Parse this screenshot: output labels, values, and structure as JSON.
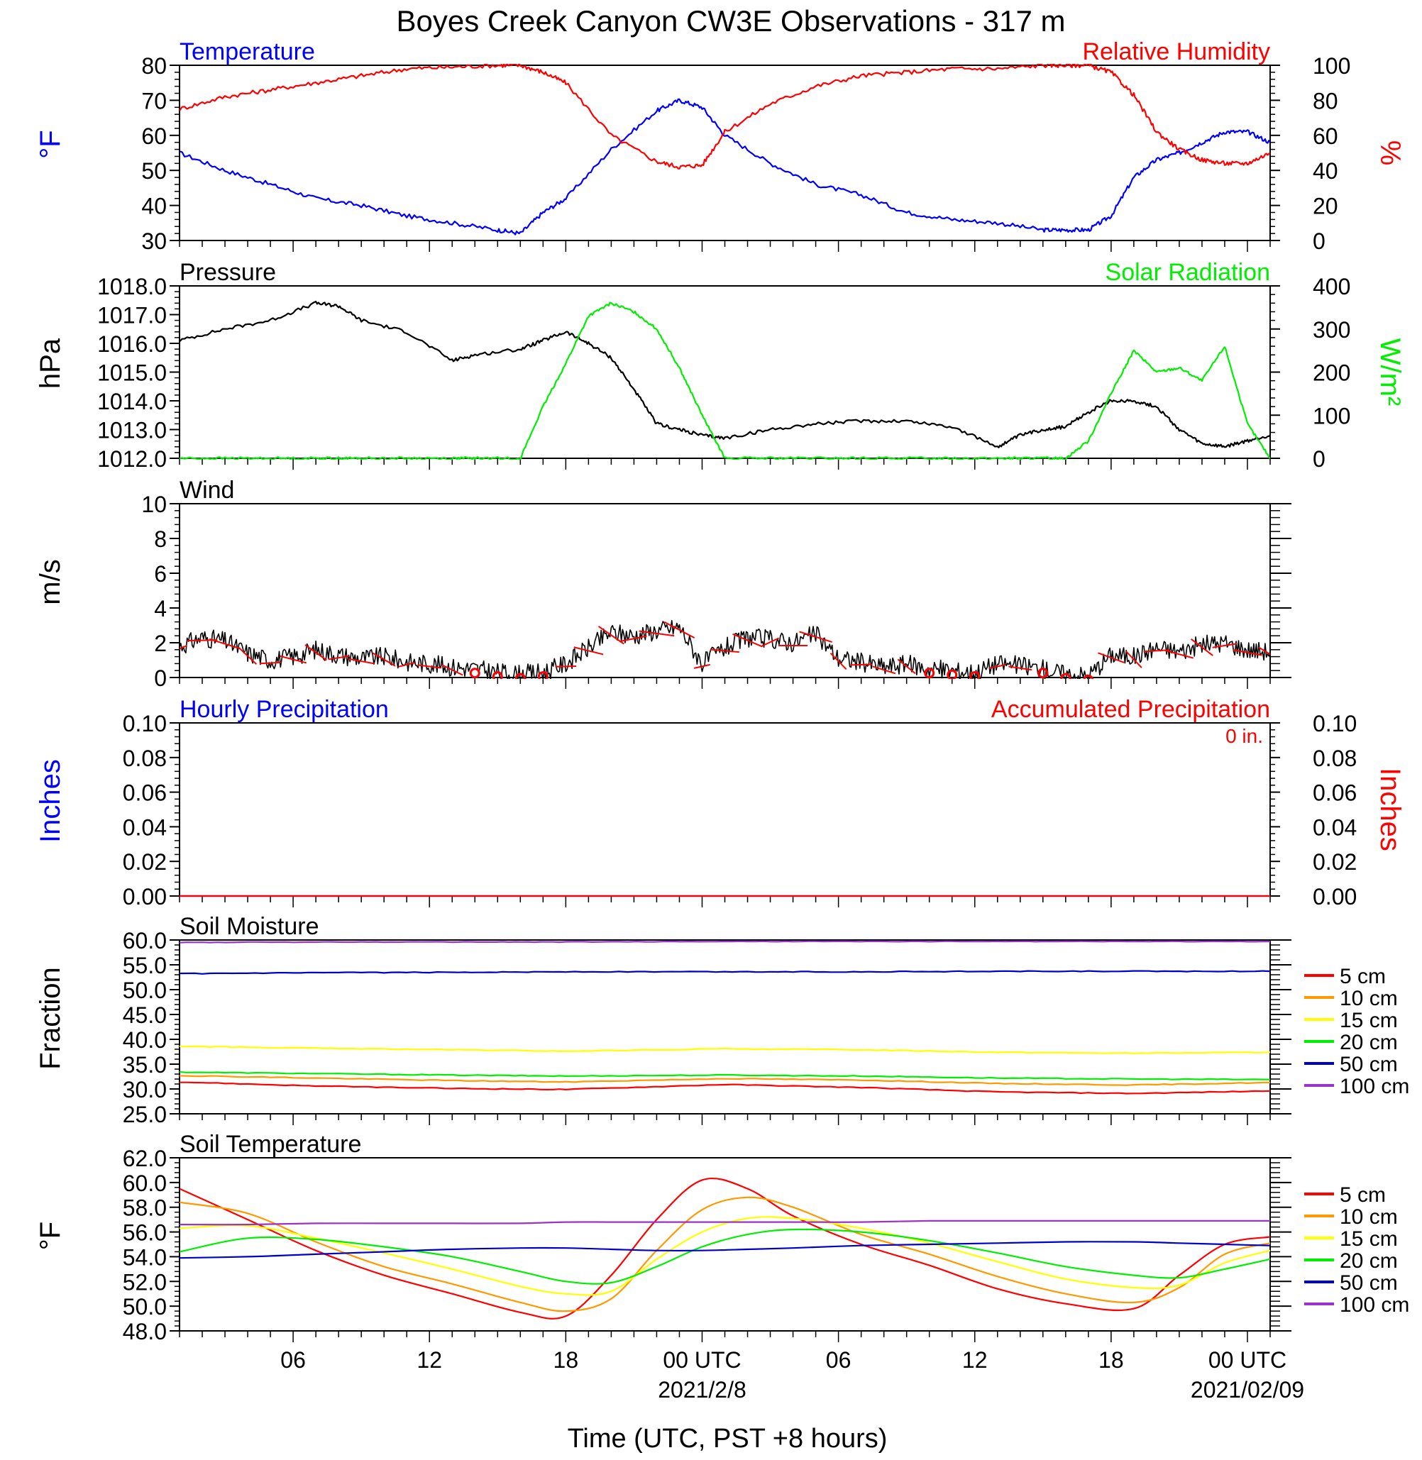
{
  "title": "Boyes Creek Canyon CW3E Observations - 317 m",
  "xaxis": {
    "label": "Time (UTC, PST +8 hours)",
    "ticks": [
      "06",
      "12",
      "18",
      "00 UTC",
      "06",
      "12",
      "18",
      "00 UTC"
    ],
    "tick_hours": [
      6,
      12,
      18,
      24,
      30,
      36,
      42,
      48
    ],
    "dates": [
      "2021/2/8",
      "2021/02/09"
    ],
    "date_hours": [
      24,
      48
    ],
    "range_hours": [
      1,
      49
    ]
  },
  "colors": {
    "temperature": "#0000ff",
    "rh": "#ff0000",
    "pressure": "#000000",
    "solar": "#00ee00",
    "wind": "#000000",
    "barb": "#ff0000",
    "soil_5": "#ff0000",
    "soil_10": "#ff9900",
    "soil_15": "#ffff00",
    "soil_20": "#00ee00",
    "soil_50": "#0000cc",
    "soil_100": "#9933cc"
  },
  "panels": {
    "temp_rh": {
      "title_left": "Temperature",
      "title_right": "Relative Humidity",
      "ylabel_left": "°F",
      "ylabel_right": "%",
      "left_ticks": [
        "80",
        "70",
        "60",
        "50",
        "40",
        "30"
      ],
      "right_ticks": [
        "100",
        "80",
        "60",
        "40",
        "20",
        "0"
      ]
    },
    "pressure_solar": {
      "title_left": "Pressure",
      "title_right": "Solar Radiation",
      "ylabel_left": "hPa",
      "ylabel_right": "W/m²",
      "left_ticks": [
        "1018.0",
        "1017.0",
        "1016.0",
        "1015.0",
        "1014.0",
        "1013.0",
        "1012.0"
      ],
      "right_ticks": [
        "400",
        "300",
        "200",
        "100",
        "0"
      ]
    },
    "wind": {
      "title_left": "Wind",
      "ylabel_left": "m/s",
      "left_ticks": [
        "10",
        "8",
        "6",
        "4",
        "2",
        "0"
      ]
    },
    "precip": {
      "title_left": "Hourly Precipitation",
      "title_right": "Accumulated Precipitation",
      "accum_label": "0 in.",
      "ylabel_left": "Inches",
      "ylabel_right": "Inches",
      "left_ticks": [
        "0.10",
        "0.08",
        "0.06",
        "0.04",
        "0.02",
        "0.00"
      ],
      "right_ticks": [
        "0.10",
        "0.08",
        "0.06",
        "0.04",
        "0.02",
        "0.00"
      ]
    },
    "soil_moisture": {
      "title_left": "Soil Moisture",
      "ylabel_left": "Fraction",
      "left_ticks": [
        "60.0",
        "55.0",
        "50.0",
        "45.0",
        "40.0",
        "35.0",
        "30.0",
        "25.0"
      ],
      "legend": [
        "5 cm",
        "10 cm",
        "15 cm",
        "20 cm",
        "50 cm",
        "100 cm"
      ]
    },
    "soil_temp": {
      "title_left": "Soil Temperature",
      "ylabel_left": "°F",
      "left_ticks": [
        "62.0",
        "60.0",
        "58.0",
        "56.0",
        "54.0",
        "52.0",
        "50.0",
        "48.0"
      ],
      "legend": [
        "5 cm",
        "10 cm",
        "15 cm",
        "20 cm",
        "50 cm",
        "100 cm"
      ]
    }
  },
  "chart_data": [
    {
      "type": "line",
      "title": "Temperature / Relative Humidity",
      "x_hours": [
        1,
        3,
        5,
        7,
        9,
        11,
        13,
        15,
        16,
        17,
        18,
        20,
        22,
        23,
        24,
        25,
        27,
        29,
        31,
        33,
        35,
        37,
        39,
        40,
        41,
        42,
        43,
        44,
        45,
        46,
        47,
        48,
        49
      ],
      "ylim_left": [
        30,
        80
      ],
      "ylim_right": [
        0,
        100
      ],
      "series": [
        {
          "name": "Temperature",
          "axis": "left",
          "values": [
            55,
            50,
            46,
            42,
            40,
            37,
            35,
            33,
            32,
            38,
            42,
            56,
            67,
            70,
            68,
            60,
            52,
            46,
            43,
            38,
            36,
            35,
            33,
            33,
            33,
            37,
            48,
            53,
            55,
            58,
            61,
            61,
            58
          ]
        },
        {
          "name": "Relative Humidity",
          "axis": "right",
          "values": [
            75,
            82,
            86,
            90,
            94,
            98,
            99,
            100,
            100,
            96,
            90,
            60,
            45,
            42,
            43,
            62,
            78,
            88,
            94,
            96,
            98,
            98,
            100,
            100,
            100,
            96,
            83,
            62,
            52,
            46,
            44,
            44,
            50
          ]
        }
      ]
    },
    {
      "type": "line",
      "title": "Pressure / Solar Radiation",
      "x_hours": [
        1,
        3,
        5,
        7,
        8,
        9,
        11,
        13,
        14,
        16,
        17,
        18,
        19,
        20,
        21,
        22,
        23,
        24,
        25,
        27,
        29,
        31,
        33,
        35,
        37,
        38,
        39,
        40,
        41,
        42,
        43,
        44,
        45,
        46,
        47,
        48,
        49
      ],
      "ylim_left": [
        1012,
        1018
      ],
      "ylim_right": [
        0,
        400
      ],
      "series": [
        {
          "name": "Pressure",
          "axis": "left",
          "values": [
            1016.1,
            1016.5,
            1016.8,
            1017.4,
            1017.3,
            1016.8,
            1016.4,
            1015.4,
            1015.6,
            1015.8,
            1016.1,
            1016.4,
            1016.0,
            1015.5,
            1014.4,
            1013.2,
            1013.0,
            1012.8,
            1012.7,
            1013.0,
            1013.2,
            1013.3,
            1013.3,
            1013.1,
            1012.4,
            1012.8,
            1013.0,
            1013.1,
            1013.6,
            1014.0,
            1014.0,
            1013.8,
            1013.0,
            1012.5,
            1012.4,
            1012.6,
            1012.8
          ]
        },
        {
          "name": "Solar Radiation",
          "axis": "right",
          "values": [
            0,
            0,
            0,
            0,
            0,
            0,
            0,
            0,
            0,
            0,
            120,
            220,
            330,
            360,
            340,
            300,
            210,
            100,
            0,
            0,
            0,
            0,
            0,
            0,
            0,
            0,
            0,
            0,
            40,
            150,
            250,
            200,
            210,
            180,
            260,
            80,
            0
          ]
        }
      ]
    },
    {
      "type": "line",
      "title": "Wind",
      "x_hours": [
        1,
        2,
        3,
        4,
        5,
        6,
        7,
        8,
        9,
        10,
        11,
        12,
        13,
        14,
        15,
        16,
        17,
        18,
        19,
        20,
        21,
        22,
        23,
        24,
        25,
        26,
        27,
        28,
        29,
        30,
        31,
        32,
        33,
        34,
        35,
        36,
        37,
        38,
        39,
        40,
        41,
        42,
        43,
        44,
        45,
        46,
        47,
        48,
        49
      ],
      "ylim": [
        0,
        10
      ],
      "series": [
        {
          "name": "Wind speed",
          "values": [
            1.8,
            2.3,
            2.1,
            1.4,
            1.0,
            1.2,
            1.6,
            1.3,
            1.1,
            1.2,
            0.9,
            0.8,
            0.6,
            0.5,
            0.3,
            0.2,
            0.3,
            0.8,
            1.7,
            2.6,
            2.4,
            2.7,
            2.9,
            0.8,
            1.7,
            2.3,
            2.2,
            2.0,
            2.5,
            1.1,
            0.9,
            0.6,
            0.8,
            0.5,
            0.4,
            0.3,
            0.8,
            0.7,
            0.5,
            0.2,
            0.1,
            1.3,
            1.2,
            1.7,
            1.5,
            1.9,
            2.0,
            1.6,
            1.5
          ]
        }
      ]
    },
    {
      "type": "line",
      "title": "Precipitation",
      "x_hours": [
        1,
        49
      ],
      "ylim": [
        0,
        0.1
      ],
      "series": [
        {
          "name": "Hourly Precipitation",
          "values": [
            0,
            0
          ]
        },
        {
          "name": "Accumulated Precipitation",
          "values": [
            0,
            0
          ]
        }
      ]
    },
    {
      "type": "line",
      "title": "Soil Moisture",
      "x_hours": [
        1,
        7,
        13,
        18,
        25,
        31,
        37,
        43,
        49
      ],
      "ylim": [
        25,
        60
      ],
      "series": [
        {
          "name": "5 cm",
          "values": [
            31.4,
            30.6,
            30.1,
            29.9,
            30.9,
            30.3,
            29.4,
            29.1,
            29.6
          ]
        },
        {
          "name": "10 cm",
          "values": [
            32.7,
            32.2,
            31.7,
            31.4,
            32.1,
            31.8,
            31.1,
            30.8,
            31.3
          ]
        },
        {
          "name": "15 cm",
          "values": [
            38.6,
            38.2,
            37.9,
            37.6,
            38.1,
            37.9,
            37.4,
            37.2,
            37.4
          ]
        },
        {
          "name": "20 cm",
          "values": [
            33.4,
            33.1,
            32.8,
            32.6,
            32.8,
            32.6,
            32.2,
            32.0,
            31.9
          ]
        },
        {
          "name": "50 cm",
          "values": [
            53.2,
            53.4,
            53.5,
            53.6,
            53.6,
            53.6,
            53.7,
            53.7,
            53.7
          ]
        },
        {
          "name": "100 cm",
          "values": [
            59.5,
            59.6,
            59.6,
            59.6,
            59.7,
            59.7,
            59.7,
            59.7,
            59.7
          ]
        }
      ]
    },
    {
      "type": "line",
      "title": "Soil Temperature",
      "x_hours": [
        1,
        4,
        7,
        10,
        13,
        16,
        18,
        20,
        22,
        24,
        26,
        28,
        31,
        34,
        37,
        40,
        43,
        45,
        47,
        49
      ],
      "ylim": [
        48,
        62
      ],
      "series": [
        {
          "name": "5 cm",
          "values": [
            59.5,
            57.0,
            54.5,
            52.5,
            51.0,
            49.5,
            49.2,
            52.5,
            57.0,
            60.2,
            59.5,
            57.3,
            55.0,
            53.3,
            51.4,
            50.2,
            49.8,
            52.5,
            55.0,
            55.6
          ]
        },
        {
          "name": "10 cm",
          "values": [
            58.4,
            57.5,
            55.2,
            53.2,
            51.8,
            50.3,
            49.6,
            50.6,
            54.5,
            57.8,
            58.8,
            58.0,
            55.8,
            54.2,
            52.4,
            51.0,
            50.3,
            51.5,
            54.2,
            55.1
          ]
        },
        {
          "name": "15 cm",
          "values": [
            56.3,
            56.5,
            55.5,
            54.3,
            53.0,
            51.6,
            51.0,
            51.2,
            53.8,
            56.0,
            57.1,
            57.1,
            56.3,
            55.1,
            53.6,
            52.2,
            51.5,
            51.7,
            53.5,
            54.5
          ]
        },
        {
          "name": "20 cm",
          "values": [
            54.4,
            55.5,
            55.4,
            54.8,
            54.0,
            52.8,
            52.0,
            51.9,
            53.2,
            54.8,
            55.8,
            56.2,
            56.0,
            55.3,
            54.3,
            53.2,
            52.5,
            52.3,
            53.0,
            53.8
          ]
        },
        {
          "name": "50 cm",
          "values": [
            53.9,
            54.0,
            54.2,
            54.4,
            54.6,
            54.7,
            54.7,
            54.6,
            54.5,
            54.5,
            54.6,
            54.7,
            54.9,
            55.0,
            55.1,
            55.2,
            55.2,
            55.1,
            55.0,
            54.9
          ]
        },
        {
          "name": "100 cm",
          "values": [
            56.6,
            56.6,
            56.7,
            56.7,
            56.7,
            56.7,
            56.8,
            56.8,
            56.8,
            56.8,
            56.8,
            56.8,
            56.8,
            56.9,
            56.9,
            56.9,
            56.9,
            56.9,
            56.9,
            56.9
          ]
        }
      ]
    }
  ]
}
